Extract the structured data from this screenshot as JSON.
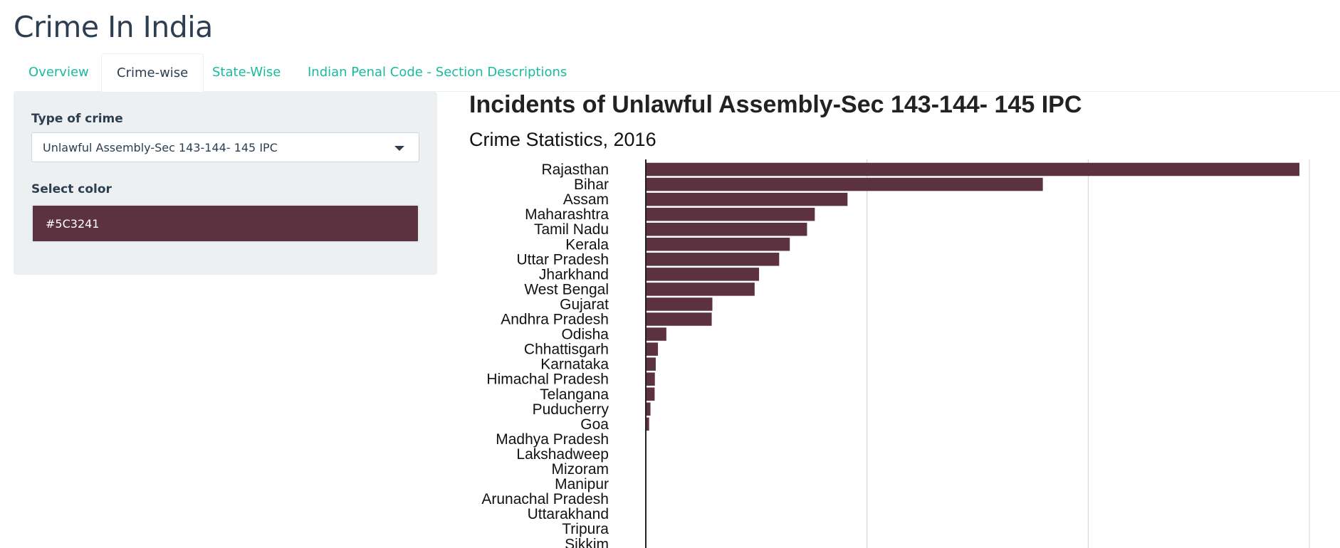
{
  "app": {
    "title": "Crime In India"
  },
  "tabs": [
    {
      "label": "Overview",
      "active": false
    },
    {
      "label": "Crime-wise",
      "active": true
    },
    {
      "label": "State-Wise",
      "active": false
    },
    {
      "label": "Indian Penal Code - Section Descriptions",
      "active": false
    }
  ],
  "sidebar": {
    "crime_type_label": "Type of crime",
    "crime_type_value": "Unlawful Assembly-Sec 143-144- 145 IPC",
    "color_label": "Select color",
    "color_value": "#5C3241"
  },
  "colors": {
    "accent": "#18bc9c",
    "bar": "#5C3241",
    "text": "#2c3e50"
  },
  "chart_data": {
    "type": "bar",
    "orientation": "horizontal",
    "title": "Incidents of Unlawful Assembly-Sec 143-144- 145 IPC",
    "subtitle": "Crime Statistics, 2016",
    "grid": true,
    "categories": [
      "Rajasthan",
      "Bihar",
      "Assam",
      "Maharashtra",
      "Tamil Nadu",
      "Kerala",
      "Uttar Pradesh",
      "Jharkhand",
      "West Bengal",
      "Gujarat",
      "Andhra Pradesh",
      "Odisha",
      "Chhattisgarh",
      "Karnataka",
      "Himachal Pradesh",
      "Telangana",
      "Puducherry",
      "Goa",
      "Madhya Pradesh",
      "Lakshadweep",
      "Mizoram",
      "Manipur",
      "Arunachal Pradesh",
      "Uttarakhand",
      "Tripura",
      "Sikkim"
    ],
    "values": [
      2955,
      1795,
      912,
      764,
      729,
      651,
      603,
      512,
      492,
      301,
      298,
      93,
      55,
      45,
      41,
      40,
      21,
      15,
      2,
      0,
      0,
      0,
      0,
      0,
      0,
      0
    ],
    "xlim": [
      0,
      3000
    ]
  }
}
